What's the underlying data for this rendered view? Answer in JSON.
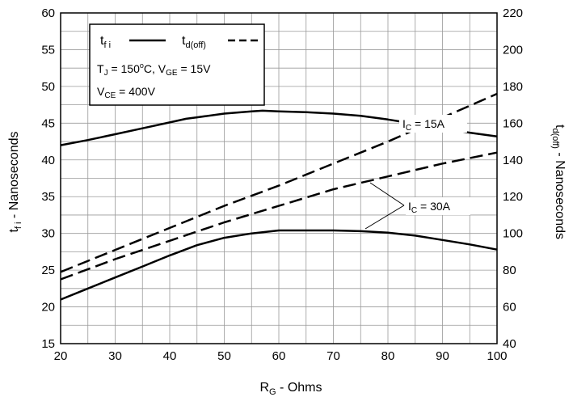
{
  "chart_data": {
    "type": "line",
    "xlabel": {
      "main": "R",
      "sub": "G",
      "rest": " - Ohms"
    },
    "ylabel_left": {
      "main": "t",
      "sub": "f i",
      "rest": " - Nanoseconds"
    },
    "ylabel_right": {
      "main": "t",
      "sub": "d(off)",
      "rest": " - Nanoseconds"
    },
    "xlim": [
      20,
      100
    ],
    "ylim_left": [
      15,
      60
    ],
    "ylim_right": [
      40,
      220
    ],
    "x_ticks": [
      20,
      30,
      40,
      50,
      60,
      70,
      80,
      90,
      100
    ],
    "y_left_ticks": [
      15,
      20,
      25,
      30,
      35,
      40,
      45,
      50,
      55,
      60
    ],
    "y_right_ticks": [
      40,
      60,
      80,
      100,
      120,
      140,
      160,
      180,
      200,
      220
    ],
    "grid": true,
    "legend": {
      "placement": "top-left",
      "solid": {
        "main": "t",
        "sub": "f i"
      },
      "dashed": {
        "main": "t",
        "sub": "d(off)"
      },
      "cond1": {
        "a": "T",
        "a_sub": "J",
        "b": " = 150",
        "b_sup": "o",
        "c": "C,  V",
        "c_sub": "GE",
        "d": " = 15V"
      },
      "cond2": {
        "a": "V",
        "a_sub": "CE",
        "b": " = 400V"
      }
    },
    "annotations": {
      "ic15": {
        "main": "I",
        "sub": "C",
        "rest": " = 15A"
      },
      "ic30": {
        "main": "I",
        "sub": "C",
        "rest": " = 30A"
      }
    },
    "series": [
      {
        "style": "solid",
        "axis": "left",
        "x": [
          20,
          25,
          30,
          35,
          40,
          43,
          45,
          50,
          55,
          57,
          60,
          65,
          70,
          75,
          80,
          85,
          90,
          95,
          100
        ],
        "y": [
          42,
          42.7,
          43.5,
          44.3,
          45.1,
          45.6,
          45.8,
          46.3,
          46.6,
          46.7,
          46.6,
          46.5,
          46.3,
          46.0,
          45.5,
          44.9,
          44.3,
          43.7,
          43.2
        ]
      },
      {
        "style": "solid",
        "axis": "left",
        "x": [
          20,
          25,
          30,
          35,
          40,
          45,
          50,
          55,
          60,
          65,
          70,
          75,
          80,
          85,
          90,
          95,
          100
        ],
        "y": [
          21,
          22.5,
          24,
          25.5,
          27,
          28.4,
          29.4,
          30,
          30.4,
          30.4,
          30.4,
          30.3,
          30.1,
          29.7,
          29.1,
          28.5,
          27.8
        ]
      },
      {
        "style": "dashed",
        "axis": "right",
        "x": [
          20,
          30,
          40,
          50,
          60,
          70,
          80,
          90,
          100
        ],
        "y": [
          79,
          91,
          103,
          115,
          126,
          138,
          150,
          163,
          176
        ]
      },
      {
        "style": "dashed",
        "axis": "right",
        "x": [
          20,
          30,
          40,
          50,
          60,
          70,
          80,
          90,
          100
        ],
        "y": [
          75,
          86,
          96,
          106,
          115,
          124,
          131,
          138,
          144
        ]
      }
    ]
  }
}
